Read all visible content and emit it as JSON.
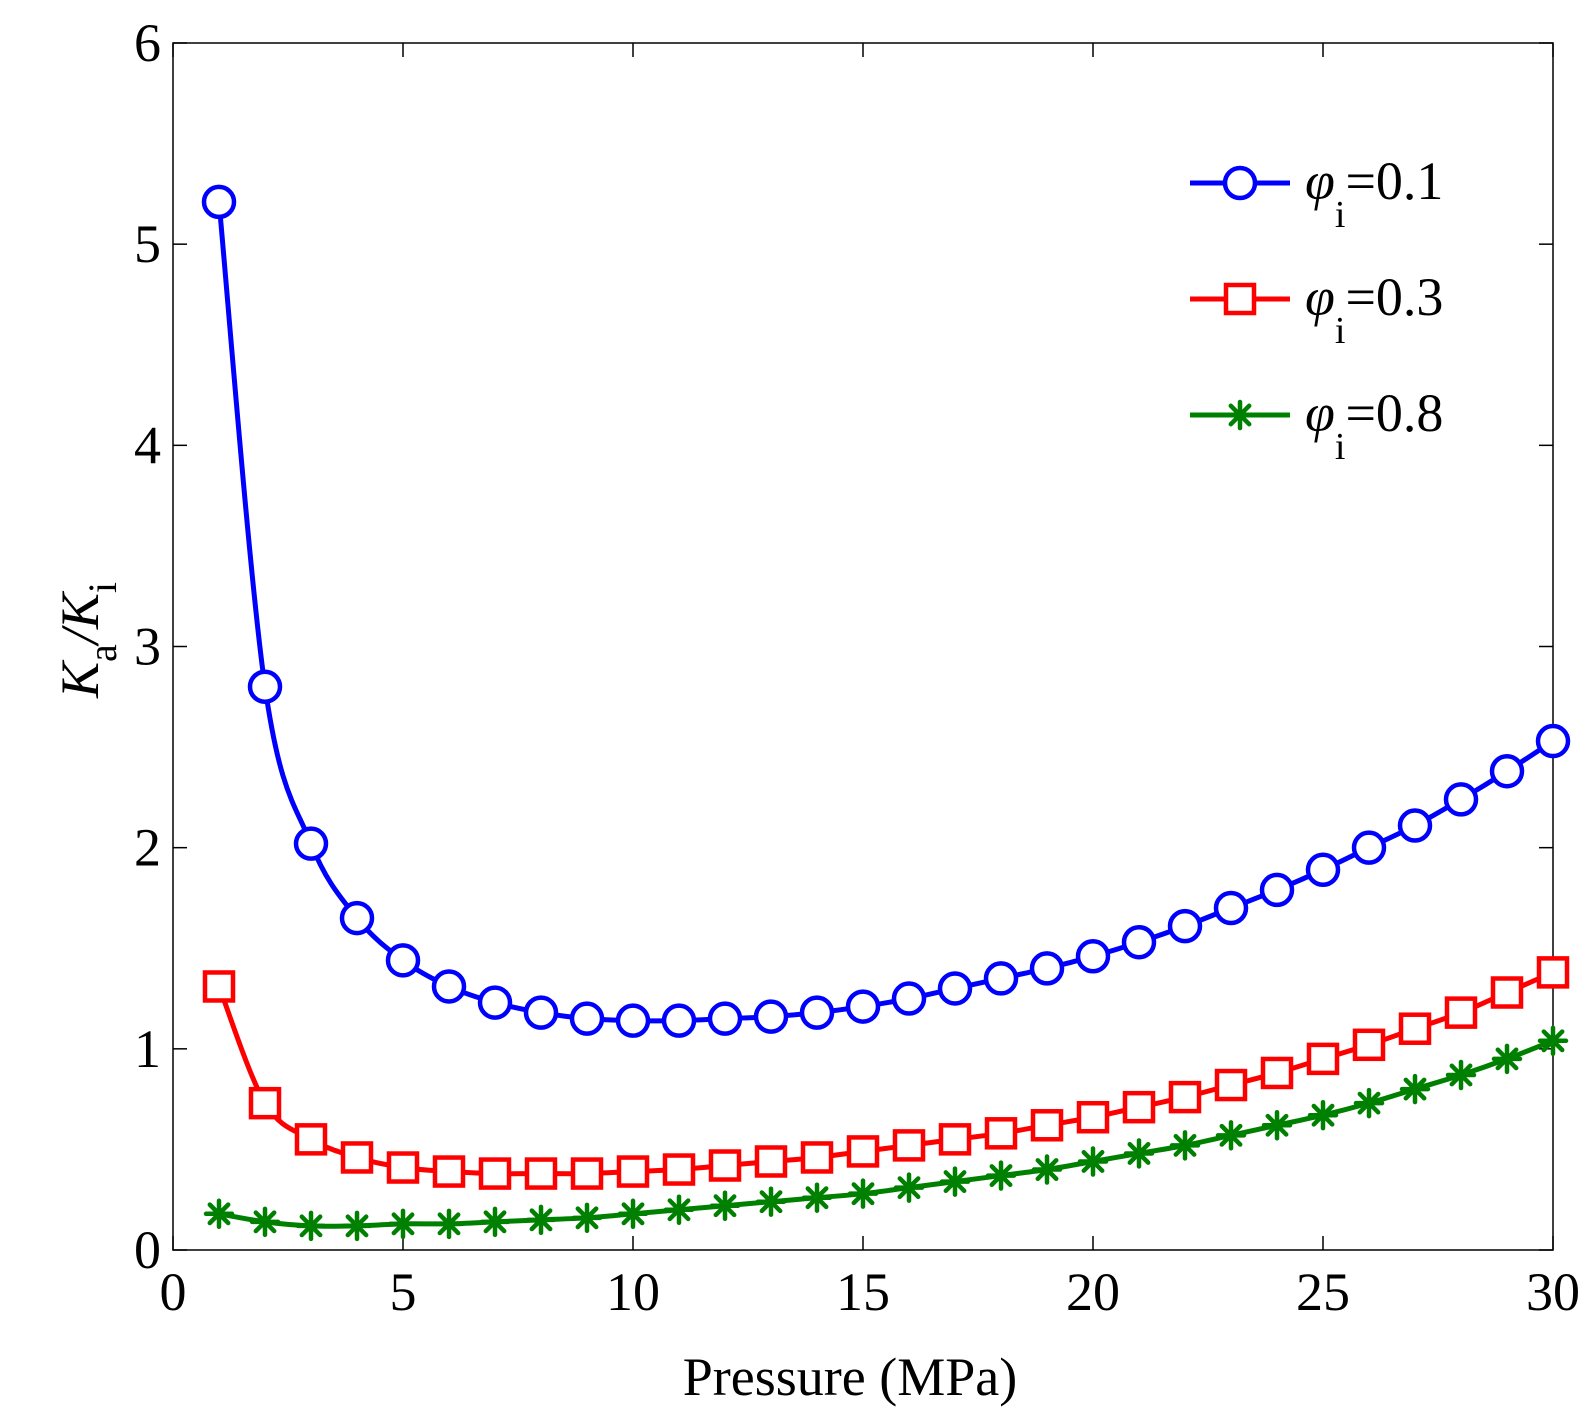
{
  "chart_data": {
    "type": "line",
    "xlabel": "Pressure (MPa)",
    "ylabel": {
      "main": "K",
      "sub_a": "a",
      "sep": "/K",
      "sub_i": "i"
    },
    "xlim": [
      0,
      30
    ],
    "ylim": [
      0,
      6
    ],
    "xticks": [
      0,
      5,
      10,
      15,
      20,
      25,
      30
    ],
    "yticks": [
      0,
      1,
      2,
      3,
      4,
      5,
      6
    ],
    "grid": false,
    "legend_position": "top-right",
    "x": [
      1,
      2,
      3,
      4,
      5,
      6,
      7,
      8,
      9,
      10,
      11,
      12,
      13,
      14,
      15,
      16,
      17,
      18,
      19,
      20,
      21,
      22,
      23,
      24,
      25,
      26,
      27,
      28,
      29,
      30
    ],
    "series": [
      {
        "name": "phi_i=0.1",
        "legend": {
          "symbol": "φ",
          "sub": "i",
          "text": "=0.1"
        },
        "color": "#0000ff",
        "marker": "circle",
        "values": [
          5.21,
          2.8,
          2.02,
          1.65,
          1.44,
          1.31,
          1.23,
          1.18,
          1.15,
          1.14,
          1.14,
          1.15,
          1.16,
          1.18,
          1.21,
          1.25,
          1.3,
          1.35,
          1.4,
          1.46,
          1.53,
          1.61,
          1.7,
          1.79,
          1.89,
          2.0,
          2.11,
          2.24,
          2.38,
          2.53
        ]
      },
      {
        "name": "phi_i=0.3",
        "legend": {
          "symbol": "φ",
          "sub": "i",
          "text": "=0.3"
        },
        "color": "#ff0000",
        "marker": "square",
        "values": [
          1.31,
          0.73,
          0.55,
          0.46,
          0.41,
          0.39,
          0.38,
          0.38,
          0.38,
          0.39,
          0.4,
          0.42,
          0.44,
          0.46,
          0.49,
          0.52,
          0.55,
          0.58,
          0.62,
          0.66,
          0.71,
          0.76,
          0.82,
          0.88,
          0.95,
          1.02,
          1.1,
          1.18,
          1.28,
          1.38
        ]
      },
      {
        "name": "phi_i=0.8",
        "legend": {
          "symbol": "φ",
          "sub": "i",
          "text": "=0.8"
        },
        "color": "#008000",
        "marker": "asterisk",
        "values": [
          0.18,
          0.14,
          0.12,
          0.12,
          0.13,
          0.13,
          0.14,
          0.15,
          0.16,
          0.18,
          0.2,
          0.22,
          0.24,
          0.26,
          0.28,
          0.31,
          0.34,
          0.37,
          0.4,
          0.44,
          0.48,
          0.52,
          0.57,
          0.62,
          0.67,
          0.73,
          0.8,
          0.87,
          0.95,
          1.04
        ]
      }
    ]
  }
}
